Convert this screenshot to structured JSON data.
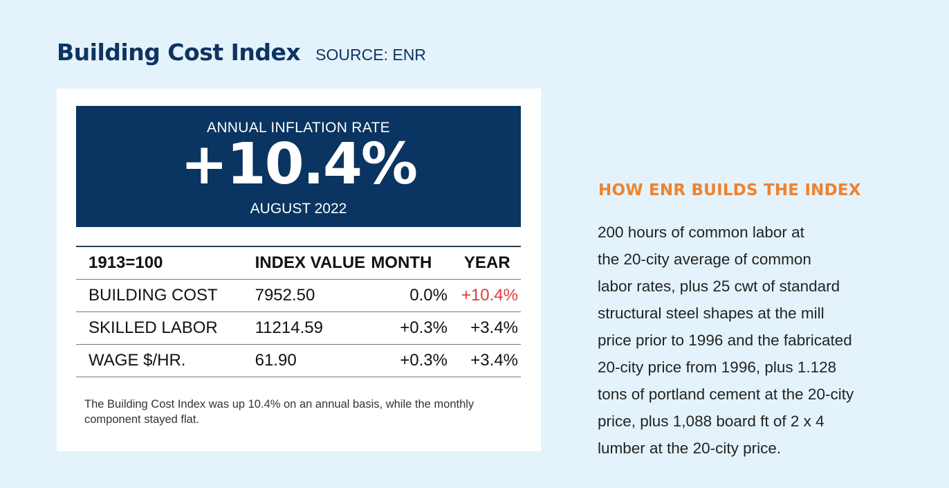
{
  "header": {
    "title": "Building Cost Index",
    "source": "SOURCE: ENR"
  },
  "banner": {
    "label": "ANNUAL INFLATION RATE",
    "rate": "+10.4%",
    "date": "AUGUST 2022"
  },
  "table": {
    "columns": [
      "1913=100",
      "INDEX VALUE",
      "MONTH",
      "YEAR"
    ],
    "rows": [
      {
        "name": "BUILDING COST",
        "index": "7952.50",
        "month": "0.0%",
        "year": "+10.4%"
      },
      {
        "name": "SKILLED LABOR",
        "index": "11214.59",
        "month": "+0.3%",
        "year": "+3.4%"
      },
      {
        "name": "WAGE $/HR.",
        "index": "61.90",
        "month": "+0.3%",
        "year": "+3.4%"
      }
    ]
  },
  "caption": "The Building Cost Index was up 10.4% on an annual basis, while the monthly component stayed flat.",
  "side": {
    "title": "HOW ENR BUILDS THE INDEX",
    "lines": [
      "200 hours of common labor at",
      "the 20-city average of common",
      "labor rates, plus 25 cwt of standard",
      "structural steel shapes at the mill",
      "price prior to 1996 and the fabricated",
      "20-city price from 1996, plus 1.128",
      "tons of portland cement at the 20-city",
      "price, plus 1,088 board ft of 2 x 4",
      "lumber at the 20-city price."
    ]
  },
  "colors": {
    "navy": "#0a3461",
    "orange": "#f0822d",
    "red": "#e03a3a",
    "background": "#e4f3fb"
  }
}
